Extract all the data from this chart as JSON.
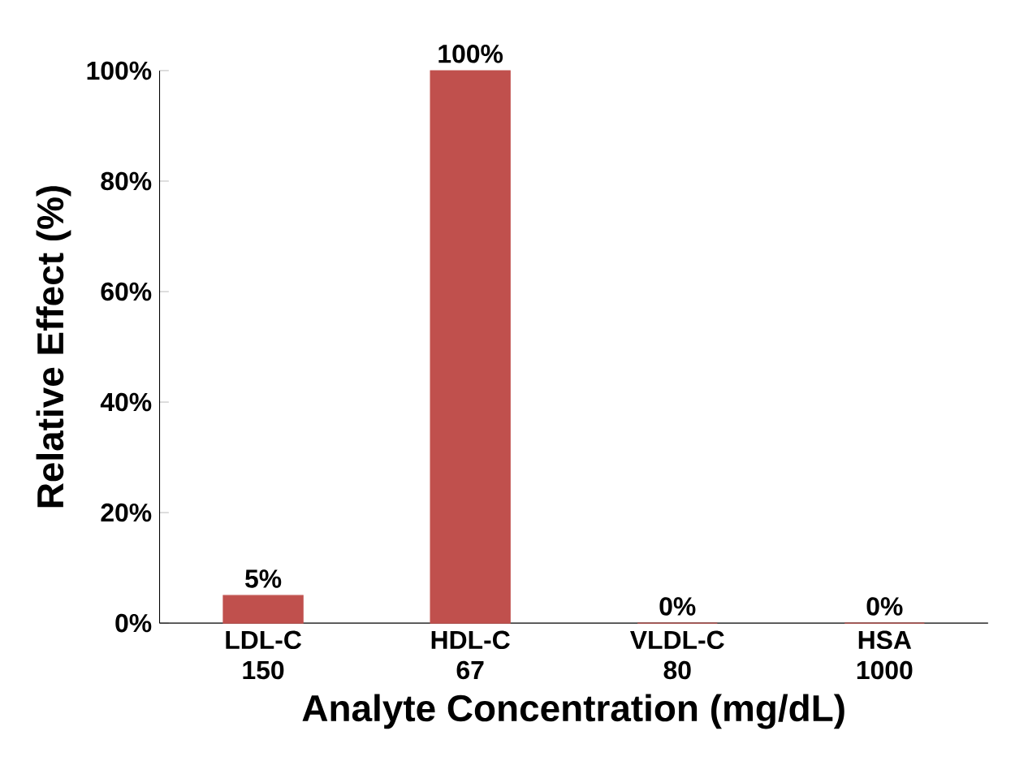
{
  "chart_data": {
    "type": "bar",
    "xlabel": "Analyte Concentration (mg/dL)",
    "ylabel": "Relative Effect (%)",
    "categories": [
      "LDL-C 150",
      "HDL-C 67",
      "VLDL-C 80",
      "HSA 1000"
    ],
    "values": [
      5,
      100,
      0,
      0
    ],
    "value_labels": [
      "5%",
      "100%",
      "0%",
      "0%"
    ],
    "color": "#c0504d",
    "ylim": [
      0,
      100
    ],
    "yticks": [
      {
        "value": 0,
        "label": "0%"
      },
      {
        "value": 20,
        "label": "20%"
      },
      {
        "value": 40,
        "label": "40%"
      },
      {
        "value": 60,
        "label": "60%"
      },
      {
        "value": 80,
        "label": "80%"
      },
      {
        "value": 100,
        "label": "100%"
      }
    ]
  }
}
